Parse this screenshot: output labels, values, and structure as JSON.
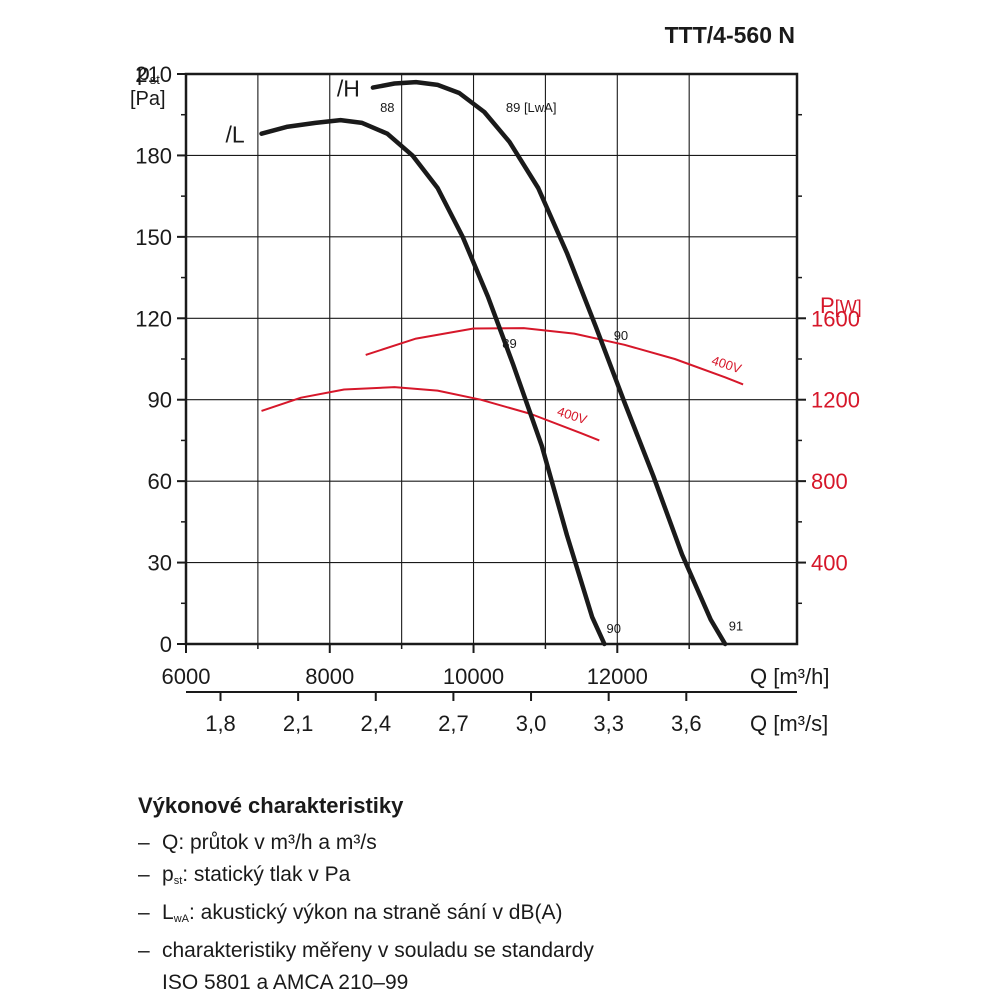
{
  "chart_data": {
    "type": "line",
    "title": "TTT/4-560 N",
    "y_axis": {
      "label": "p",
      "label_sub": "st",
      "unit": "[Pa]",
      "min": 0,
      "max": 210,
      "ticks": [
        0,
        30,
        60,
        90,
        120,
        150,
        180,
        210
      ]
    },
    "x_axis": {
      "label": "Q [m³/h]",
      "min": 6000,
      "max": 14500,
      "ticks": [
        6000,
        8000,
        10000,
        12000
      ],
      "tick_labels": [
        "6000",
        "8000",
        "10000",
        "12000"
      ]
    },
    "x2_axis": {
      "label": "Q [m³/s]",
      "ticks": [
        1.8,
        2.1,
        2.4,
        2.7,
        3.0,
        3.3,
        3.6
      ],
      "tick_labels": [
        "1,8",
        "2,1",
        "2,4",
        "2,7",
        "3,0",
        "3,3",
        "3,6"
      ]
    },
    "y2_axis": {
      "label": "P",
      "unit": "[W]",
      "min": 0,
      "max": 2800,
      "ticks": [
        400,
        800,
        1200,
        1600
      ],
      "tick_labels": [
        "400",
        "800",
        "1200",
        "1600"
      ]
    },
    "grid": true,
    "pressure_series": [
      {
        "name": "/L",
        "color": "#1a1a1a",
        "points": [
          [
            7050,
            188
          ],
          [
            7400,
            190.5
          ],
          [
            7800,
            192
          ],
          [
            8150,
            193
          ],
          [
            8450,
            192
          ],
          [
            8800,
            188
          ],
          [
            9150,
            180
          ],
          [
            9500,
            168
          ],
          [
            9850,
            150
          ],
          [
            10200,
            128
          ],
          [
            10550,
            103
          ],
          [
            10950,
            73
          ],
          [
            11300,
            40
          ],
          [
            11650,
            10
          ],
          [
            11820,
            0
          ]
        ]
      },
      {
        "name": "/H",
        "color": "#1a1a1a",
        "points": [
          [
            8600,
            205
          ],
          [
            8900,
            206.5
          ],
          [
            9200,
            207
          ],
          [
            9500,
            206
          ],
          [
            9800,
            203
          ],
          [
            10150,
            196
          ],
          [
            10500,
            185
          ],
          [
            10900,
            168
          ],
          [
            11300,
            144
          ],
          [
            11700,
            117
          ],
          [
            12100,
            89
          ],
          [
            12500,
            62
          ],
          [
            12900,
            33
          ],
          [
            13300,
            9
          ],
          [
            13500,
            0
          ]
        ]
      }
    ],
    "power_series": [
      {
        "name": "L 400V",
        "color": "#d6172a",
        "points": [
          [
            7050,
            1145
          ],
          [
            7600,
            1210
          ],
          [
            8200,
            1250
          ],
          [
            8900,
            1262
          ],
          [
            9500,
            1245
          ],
          [
            10100,
            1200
          ],
          [
            10800,
            1130
          ],
          [
            11500,
            1035
          ],
          [
            11750,
            1000
          ]
        ]
      },
      {
        "name": "H 400V",
        "color": "#d6172a",
        "points": [
          [
            8500,
            1420
          ],
          [
            9200,
            1500
          ],
          [
            10000,
            1550
          ],
          [
            10700,
            1552
          ],
          [
            11400,
            1525
          ],
          [
            12100,
            1470
          ],
          [
            12800,
            1400
          ],
          [
            13500,
            1310
          ],
          [
            13750,
            1275
          ]
        ]
      }
    ],
    "annotations": [
      {
        "text": "88",
        "x": 8700,
        "y": 196
      },
      {
        "text": "89 [LwA]",
        "x": 10450,
        "y": 196
      },
      {
        "text": "89",
        "x": 10400,
        "y": 109
      },
      {
        "text": "90",
        "x": 11950,
        "y": 112
      },
      {
        "text": "90",
        "x": 11850,
        "y": 4
      },
      {
        "text": "91",
        "x": 13550,
        "y": 5
      }
    ],
    "voltage_labels": [
      {
        "text": "400V",
        "x": 11150,
        "y": 1125
      },
      {
        "text": "400V",
        "x": 13300,
        "y": 1375
      }
    ]
  },
  "legend": {
    "title": "Výkonové charakteristiky",
    "items": [
      {
        "dash": "–",
        "pre": "Q: průtok v m³/h a m³/s"
      },
      {
        "dash": "–",
        "pre": "p",
        "sub": "st",
        "post": ": statický tlak v Pa"
      },
      {
        "dash": "–",
        "pre": "L",
        "sub": "wA",
        "post": ": akustický výkon na straně sání v dB(A)"
      },
      {
        "dash": "–",
        "pre": "charakteristiky měřeny v souladu se standardy"
      },
      {
        "dash": "",
        "pre": "ISO 5801 a AMCA 210–99"
      }
    ]
  }
}
